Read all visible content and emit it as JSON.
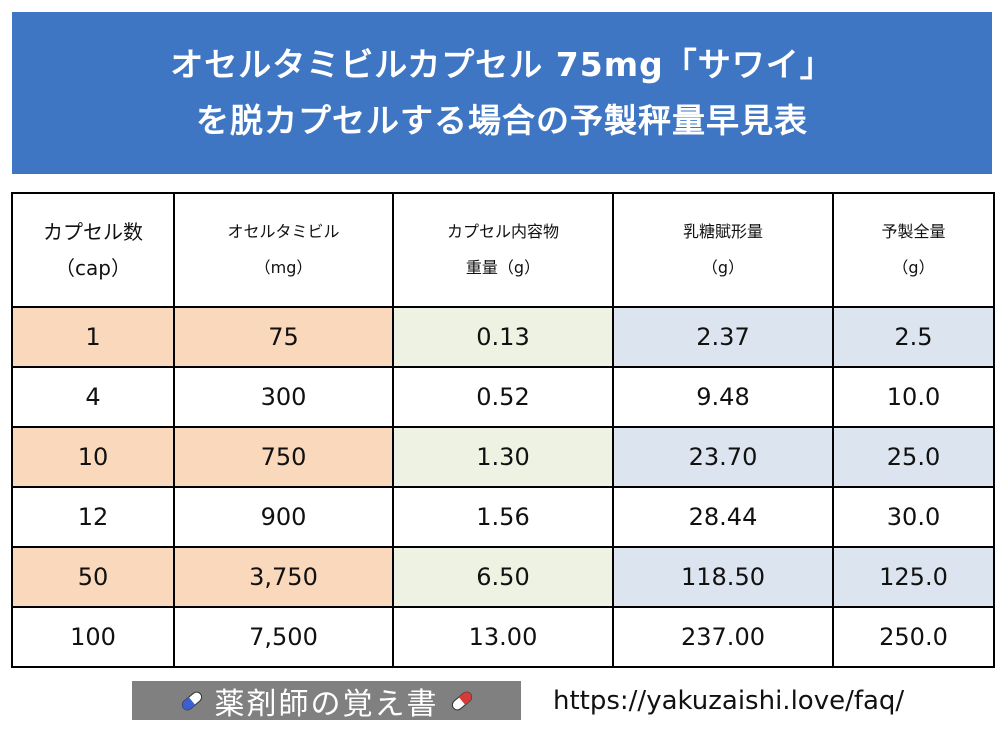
{
  "title": {
    "line1": "オセルタミビルカプセル 75mg「サワイ」",
    "line2": "を脱カプセルする場合の予製秤量早見表"
  },
  "table": {
    "headers": [
      {
        "line1": "カプセル数",
        "line2": "（cap）"
      },
      {
        "line1": "オセルタミビル",
        "line2": "（mg）"
      },
      {
        "line1": "カプセル内容物",
        "line2": "重量（g）"
      },
      {
        "line1": "乳糖賦形量",
        "line2": "（g）"
      },
      {
        "line1": "予製全量",
        "line2": "（g）"
      }
    ],
    "rows": [
      [
        "1",
        "75",
        "0.13",
        "2.37",
        "2.5"
      ],
      [
        "4",
        "300",
        "0.52",
        "9.48",
        "10.0"
      ],
      [
        "10",
        "750",
        "1.30",
        "23.70",
        "25.0"
      ],
      [
        "12",
        "900",
        "1.56",
        "28.44",
        "30.0"
      ],
      [
        "50",
        "3,750",
        "6.50",
        "118.50",
        "125.0"
      ],
      [
        "100",
        "7,500",
        "13.00",
        "237.00",
        "250.0"
      ]
    ]
  },
  "colors": {
    "banner": "#3f76c4",
    "orange_cell": "#f9d8bc",
    "green_cell": "#edf2e2",
    "blue_cell": "#dce4ef",
    "badge_bg": "#808080"
  },
  "footer": {
    "badge_label": "薬剤師の覚え書",
    "badge_icon": "capsule-icon",
    "url": "https://yakuzaishi.love/faq/"
  }
}
